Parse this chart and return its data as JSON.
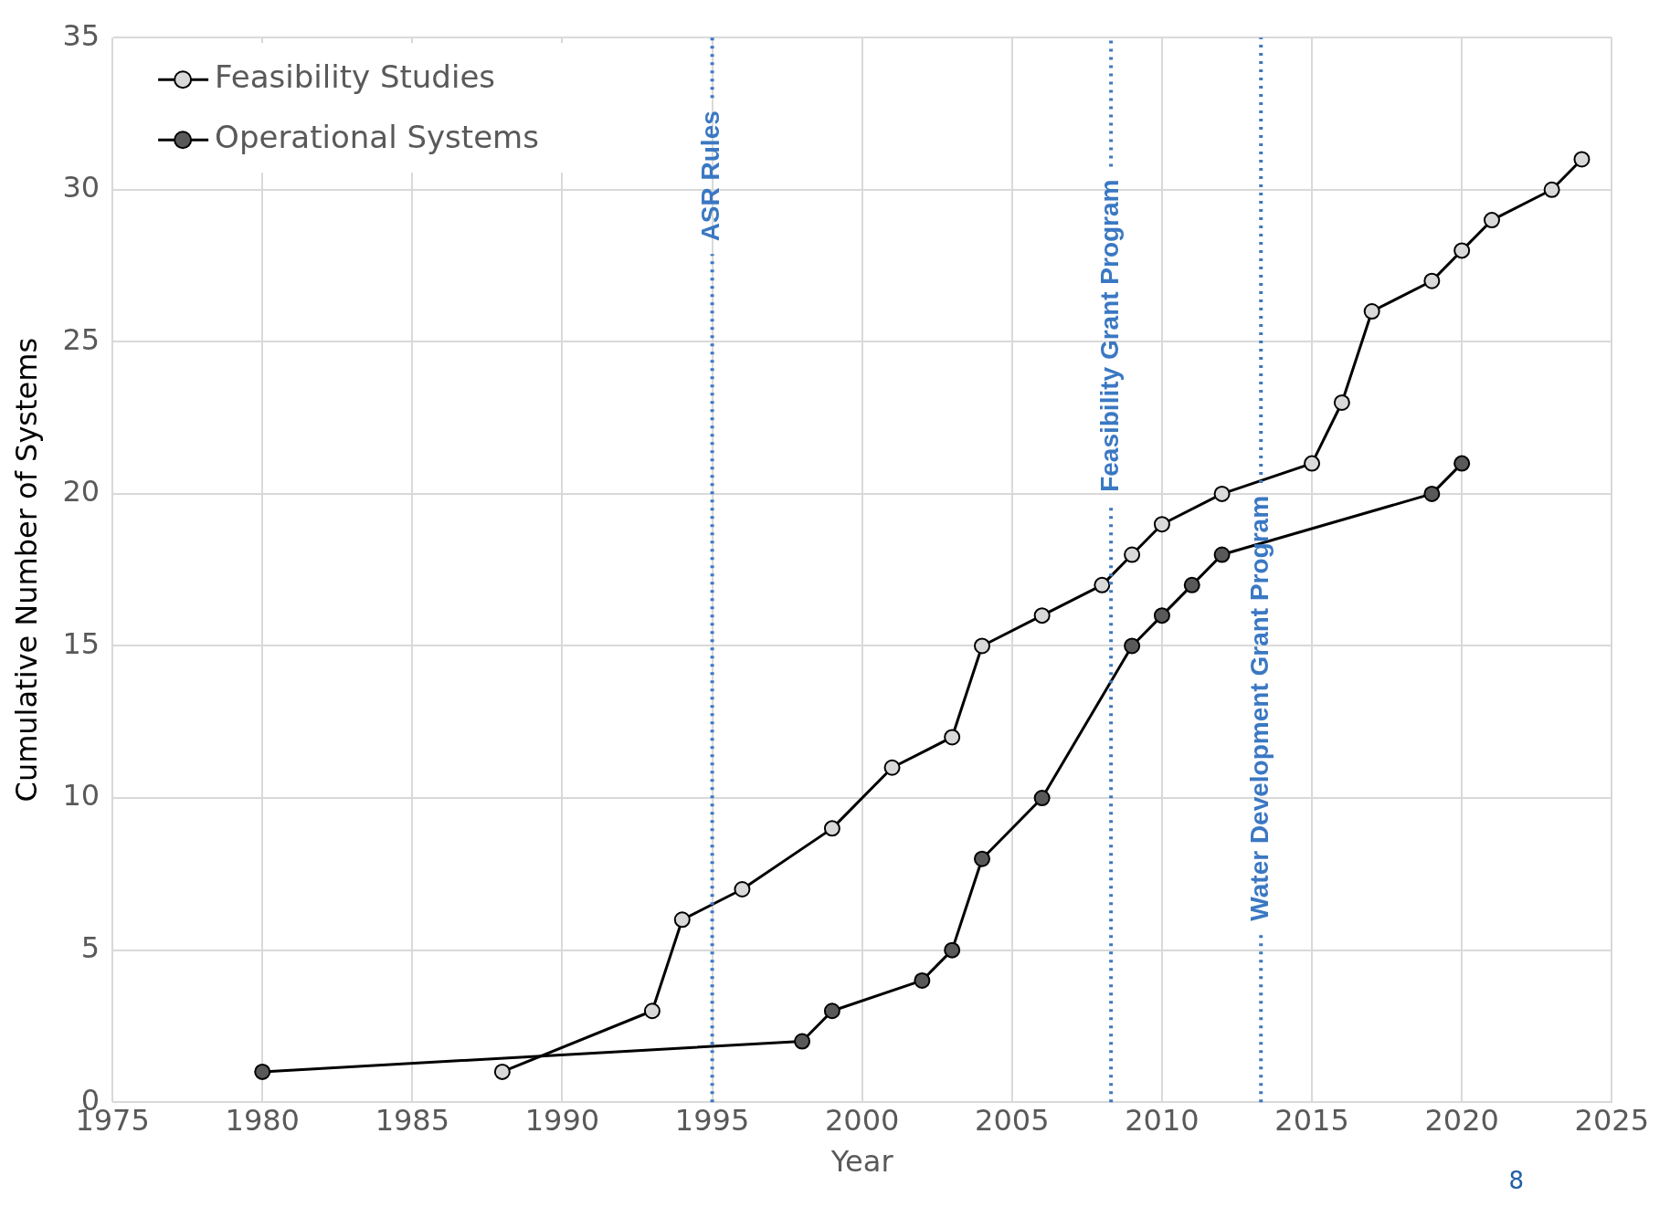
{
  "chart_data": {
    "type": "line",
    "xlabel": "Year",
    "ylabel": "Cumulative Number of Systems",
    "series": [
      {
        "name": "Feasibility Studies",
        "color": "#d9d9d9",
        "x": [
          1988,
          1993,
          1994,
          1996,
          1999,
          2001,
          2003,
          2004,
          2006,
          2008,
          2009,
          2010,
          2012,
          2015,
          2016,
          2017,
          2019,
          2020,
          2021,
          2023,
          2024
        ],
        "values": [
          1,
          3,
          6,
          7,
          9,
          11,
          12,
          15,
          16,
          17,
          18,
          19,
          20,
          21,
          23,
          26,
          27,
          28,
          29,
          30,
          31
        ]
      },
      {
        "name": "Operational Systems",
        "color": "#595959",
        "x": [
          1980,
          1998,
          1999,
          2002,
          2003,
          2004,
          2006,
          2009,
          2010,
          2011,
          2012,
          2019,
          2020
        ],
        "values": [
          1,
          2,
          3,
          4,
          5,
          8,
          10,
          15,
          16,
          17,
          18,
          20,
          21
        ]
      }
    ],
    "xlim": [
      1975,
      2025
    ],
    "xticks": [
      1975,
      1980,
      1985,
      1990,
      1995,
      2000,
      2005,
      2010,
      2015,
      2020,
      2025
    ],
    "ylim": [
      0,
      35
    ],
    "yticks": [
      0,
      5,
      10,
      15,
      20,
      25,
      30,
      35
    ],
    "grid": true,
    "legend": "top left",
    "marker": "circle",
    "line_style": "solid",
    "ref_lines": [
      {
        "axis": "x",
        "value": 1995,
        "label": "ASR Rules",
        "color": "#3b78c3",
        "line_style": "dotted"
      },
      {
        "axis": "x",
        "value": 2008.3,
        "label": "Feasibility Grant Program",
        "color": "#3b78c3",
        "line_style": "dotted"
      },
      {
        "axis": "x",
        "value": 2013.3,
        "label": "Water Development Grant Program",
        "color": "#3b78c3",
        "line_style": "dotted"
      }
    ],
    "annotations": [
      "8"
    ]
  }
}
